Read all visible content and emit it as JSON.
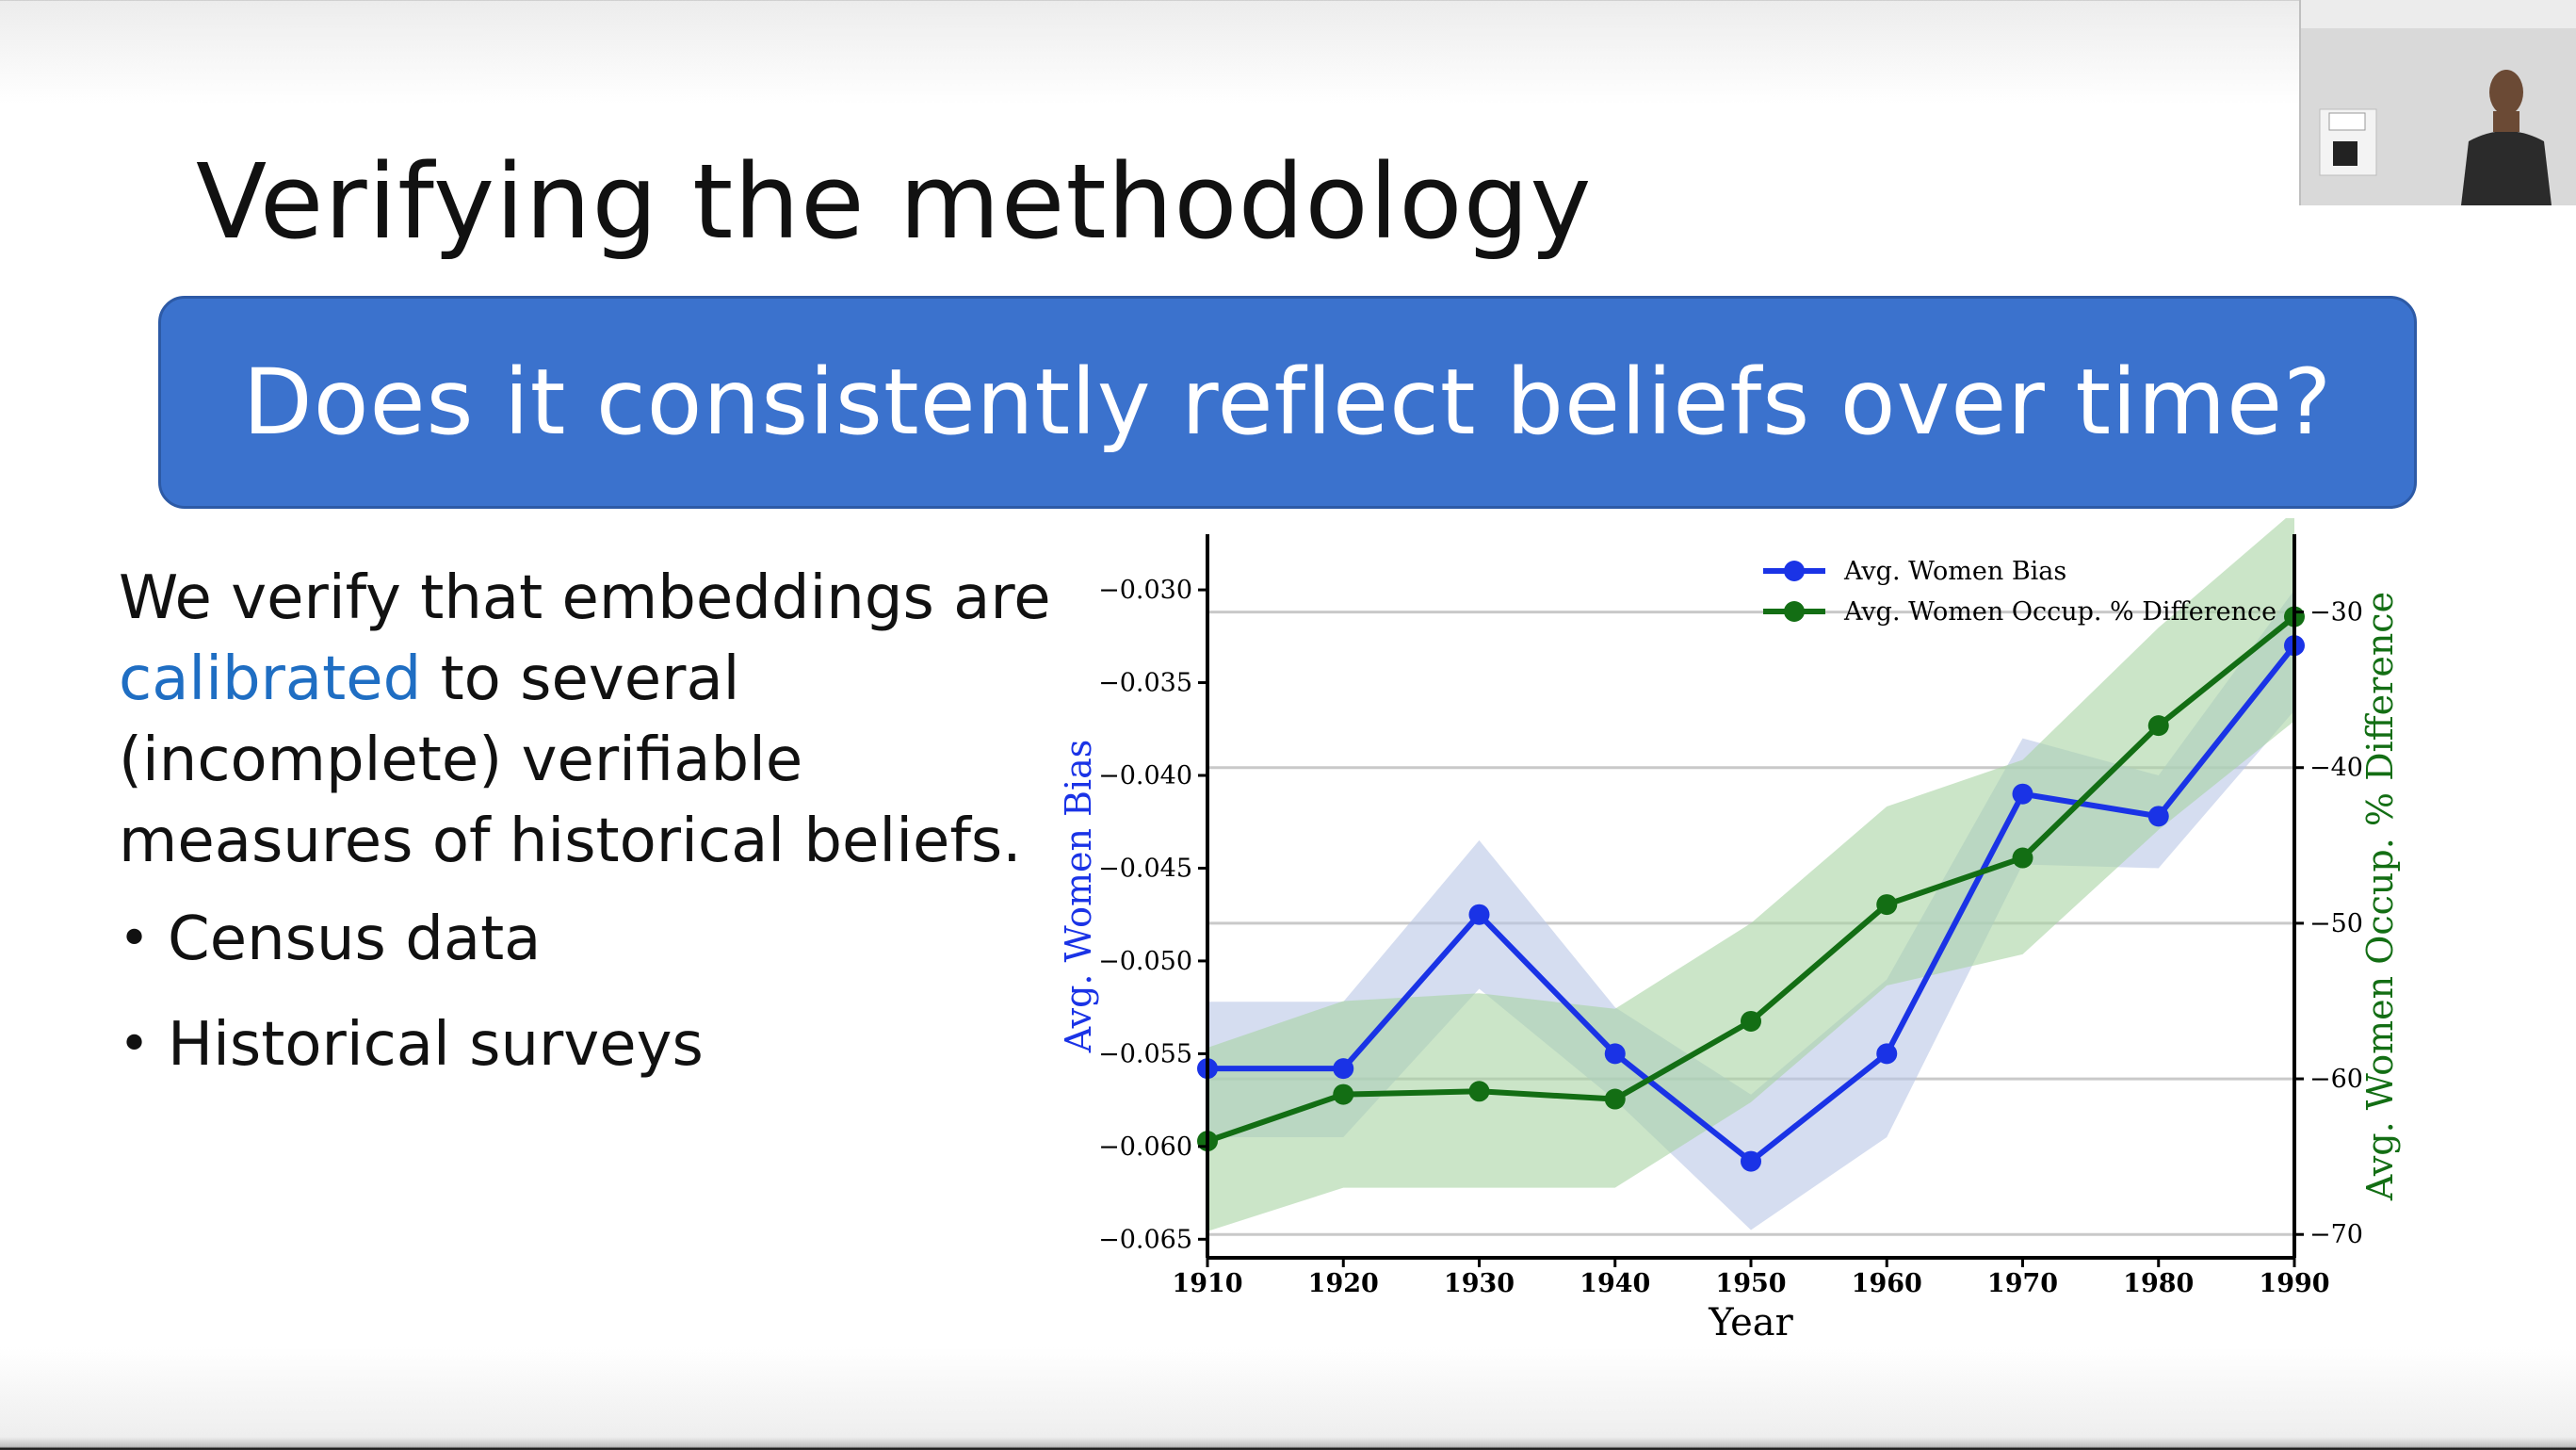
{
  "slide": {
    "title": "Verifying the methodology",
    "banner": "Does it consistently reflect beliefs over time?",
    "body_pre": "We verify that embeddings are ",
    "body_accent": "calibrated",
    "body_post": " to several (incomplete) verifiable measures of historical beliefs.",
    "bullets": [
      "Census data",
      "Historical surveys"
    ],
    "colors": {
      "banner": "#3b72cd",
      "accent": "#1f6ec3"
    }
  },
  "webcam": {
    "icon": "presenter-video-icon"
  },
  "chart_data": {
    "type": "line",
    "x": [
      1910,
      1920,
      1930,
      1940,
      1950,
      1960,
      1970,
      1980,
      1990
    ],
    "xlabel": "Year",
    "ylabel_left": "Avg. Women Bias",
    "ylabel_right": "Avg. Women Occup. % Difference",
    "ylim_left": [
      -0.066,
      -0.027
    ],
    "ylim_right": [
      -71.5,
      -25
    ],
    "yticks_left": [
      "−0.030",
      "−0.035",
      "−0.040",
      "−0.045",
      "−0.050",
      "−0.055",
      "−0.060",
      "−0.065"
    ],
    "ytick_values_left": [
      -0.03,
      -0.035,
      -0.04,
      -0.045,
      -0.05,
      -0.055,
      -0.06,
      -0.065
    ],
    "yticks_right": [
      "−30",
      "−40",
      "−50",
      "−60",
      "−70"
    ],
    "ytick_values_right": [
      -30,
      -40,
      -50,
      -60,
      -70
    ],
    "xticks": [
      "1910",
      "1920",
      "1930",
      "1940",
      "1950",
      "1960",
      "1970",
      "1980",
      "1990"
    ],
    "legend_position": "top-right",
    "grid": "horizontal",
    "series": [
      {
        "name": "Avg. Women Bias",
        "axis": "left",
        "color": "#1a33e6",
        "band_color": "#b9c7e6",
        "values": [
          -0.0558,
          -0.0558,
          -0.0475,
          -0.055,
          -0.0608,
          -0.055,
          -0.041,
          -0.0422,
          -0.033
        ],
        "lower": [
          -0.0595,
          -0.0595,
          -0.0515,
          -0.0575,
          -0.0645,
          -0.0595,
          -0.0448,
          -0.045,
          -0.0365
        ],
        "upper": [
          -0.0522,
          -0.0522,
          -0.0435,
          -0.0525,
          -0.0572,
          -0.051,
          -0.038,
          -0.04,
          -0.03
        ]
      },
      {
        "name": "Avg. Women Occup. % Difference",
        "axis": "right",
        "color": "#136e14",
        "band_color": "#a9d3a3",
        "values": [
          -64.0,
          -61.0,
          -60.8,
          -61.3,
          -56.3,
          -48.8,
          -45.8,
          -37.3,
          -30.3
        ],
        "lower": [
          -69.8,
          -67.0,
          -67.0,
          -67.0,
          -61.5,
          -54.0,
          -52.0,
          -44.0,
          -37.0
        ],
        "upper": [
          -58.0,
          -55.0,
          -54.5,
          -55.5,
          -50.0,
          -42.5,
          -39.5,
          -31.0,
          -23.5
        ]
      }
    ]
  }
}
